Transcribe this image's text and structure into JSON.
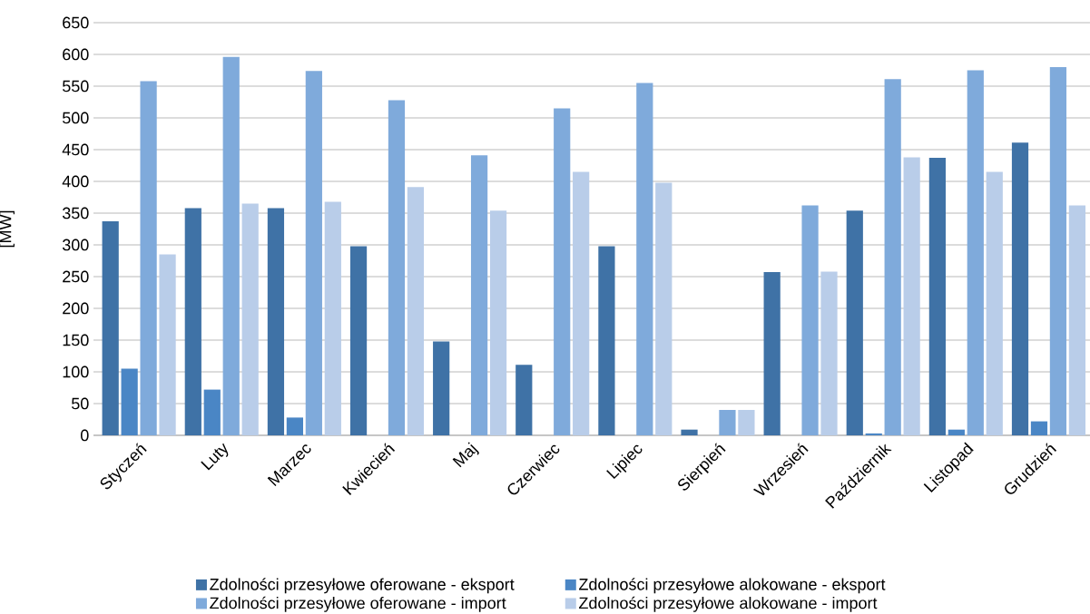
{
  "chart_data": {
    "type": "bar",
    "ylabel": "[MW]",
    "categories": [
      "Styczeń",
      "Luty",
      "Marzec",
      "Kwiecień",
      "Maj",
      "Czerwiec",
      "Lipiec",
      "Sierpień",
      "Wrzesień",
      "Październik",
      "Listopad",
      "Grudzień"
    ],
    "series": [
      {
        "name": "Zdolności przesyłowe oferowane - eksport",
        "color": "#3f72a6",
        "values": [
          337,
          358,
          358,
          298,
          148,
          111,
          298,
          9,
          257,
          354,
          437,
          461
        ]
      },
      {
        "name": "Zdolności przesyłowe alokowane - eksport",
        "color": "#4a86c5",
        "values": [
          105,
          72,
          28,
          0,
          0,
          0,
          0,
          0,
          0,
          3,
          9,
          22
        ]
      },
      {
        "name": "Zdolności przesyłowe oferowane - import",
        "color": "#7faadb",
        "values": [
          558,
          596,
          574,
          528,
          441,
          515,
          555,
          40,
          362,
          561,
          575,
          580
        ]
      },
      {
        "name": "Zdolności przesyłowe alokowane - import",
        "color": "#b9cde9",
        "values": [
          285,
          365,
          368,
          391,
          354,
          415,
          398,
          40,
          258,
          438,
          415,
          362
        ]
      }
    ],
    "ylim": [
      0,
      650
    ],
    "yticks": [
      0,
      50,
      100,
      150,
      200,
      250,
      300,
      350,
      400,
      450,
      500,
      550,
      600,
      650
    ],
    "grid": "y",
    "legend": "bottom"
  }
}
